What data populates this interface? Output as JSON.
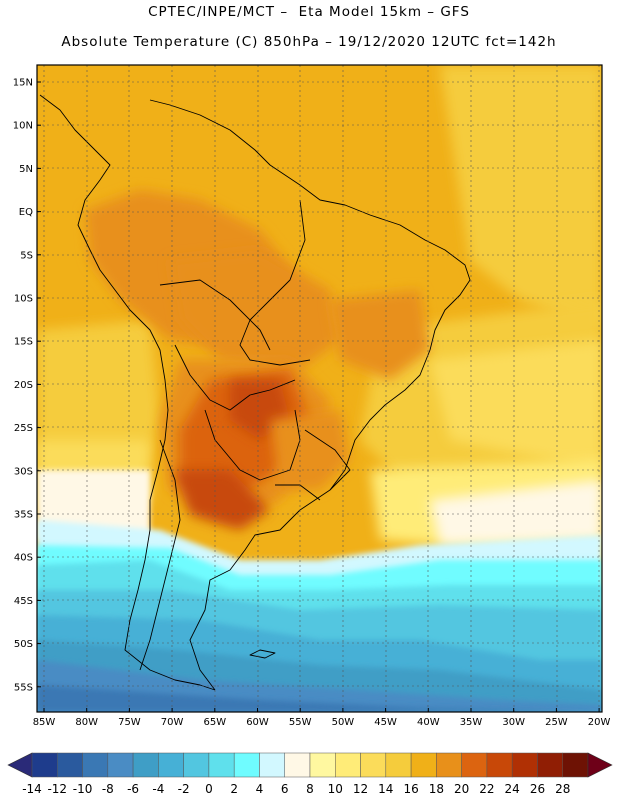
{
  "title_line1": "CPTEC/INPE/MCT –  Eta Model 15km – GFS",
  "title_line2": "Absolute Temperature (C) 850hPa – 19/12/2020 12UTC fct=142h",
  "lat_labels": [
    "15N",
    "10N",
    "5N",
    "EQ",
    "5S",
    "10S",
    "15S",
    "20S",
    "25S",
    "30S",
    "35S",
    "40S",
    "45S",
    "50S",
    "55S"
  ],
  "lon_labels": [
    "85W",
    "80W",
    "75W",
    "70W",
    "65W",
    "60W",
    "55W",
    "50W",
    "45W",
    "40W",
    "35W",
    "30W",
    "25W",
    "20W"
  ],
  "colorbar": {
    "labels": [
      "-14",
      "-12",
      "-10",
      "-8",
      "-6",
      "-4",
      "-2",
      "0",
      "2",
      "4",
      "6",
      "8",
      "10",
      "12",
      "14",
      "16",
      "18",
      "20",
      "22",
      "24",
      "26",
      "28"
    ],
    "colors": [
      "#1e3c8c",
      "#2a5a9e",
      "#3a78b4",
      "#4a8cc4",
      "#3f9ec6",
      "#46b0d6",
      "#52c6e0",
      "#5fe0ec",
      "#6ffcff",
      "#d2f8ff",
      "#fff8e6",
      "#fff8a0",
      "#ffec78",
      "#fbdc5a",
      "#f5cc3c",
      "#f0b018",
      "#e8901a",
      "#dc6410",
      "#c84808",
      "#b03004",
      "#901e04",
      "#6e1204"
    ],
    "low_arrow_color": "#2a2a78",
    "high_arrow_color": "#6e0018"
  }
}
